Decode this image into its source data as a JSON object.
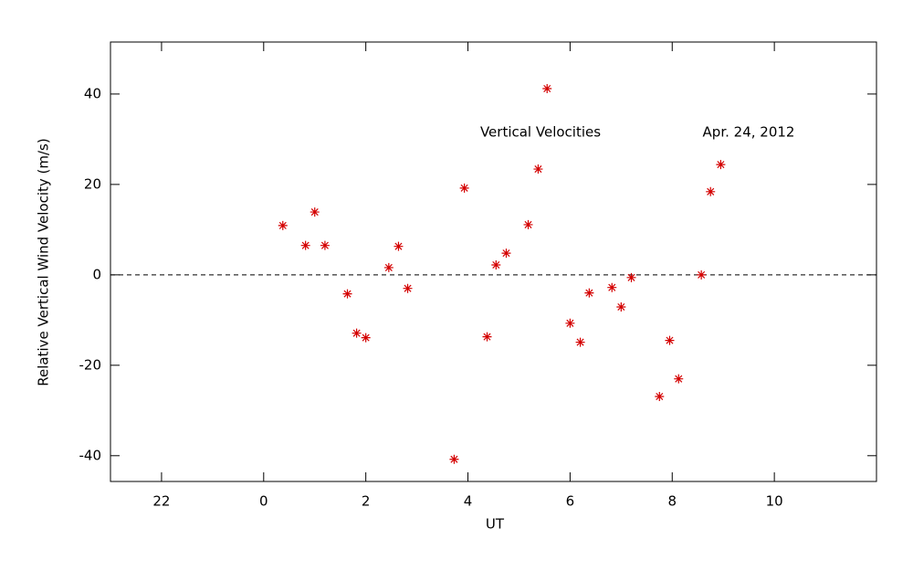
{
  "chart_data": {
    "type": "scatter",
    "xlabel": "UT",
    "ylabel": "Relative Vertical Wind Velocity (m/s)",
    "annotations": [
      "Vertical Velocities",
      "Apr. 24, 2012"
    ],
    "series": [
      {
        "name": "Vertical Velocities",
        "color": "#d40000",
        "x": [
          0.375,
          0.82,
          1.0,
          1.2,
          1.64,
          1.82,
          2.0,
          2.45,
          2.64,
          2.82,
          3.73,
          3.93,
          4.375,
          4.55,
          4.75,
          5.18,
          5.375,
          5.55,
          6.0,
          6.2,
          6.375,
          6.82,
          7.0,
          7.2,
          7.75,
          7.95,
          8.125,
          8.57,
          8.75,
          8.95
        ],
        "values": [
          10.9,
          6.5,
          13.9,
          6.5,
          -4.2,
          -12.9,
          -13.9,
          1.6,
          6.3,
          -3.0,
          -40.8,
          19.2,
          -13.7,
          2.2,
          4.8,
          11.1,
          23.4,
          41.2,
          -10.7,
          -14.9,
          -4.0,
          -2.8,
          -7.1,
          -0.6,
          -26.9,
          -14.5,
          -23.0,
          0.0,
          18.4,
          24.4
        ]
      }
    ],
    "xlim": [
      -3,
      12
    ],
    "xticks": [
      {
        "value": -2,
        "label": "22"
      },
      0,
      2,
      4,
      6,
      8,
      10
    ],
    "ylim": [
      -45.7,
      51.5
    ],
    "yticks": [
      -40,
      -20,
      0,
      20,
      40
    ],
    "reference_line": 0
  }
}
